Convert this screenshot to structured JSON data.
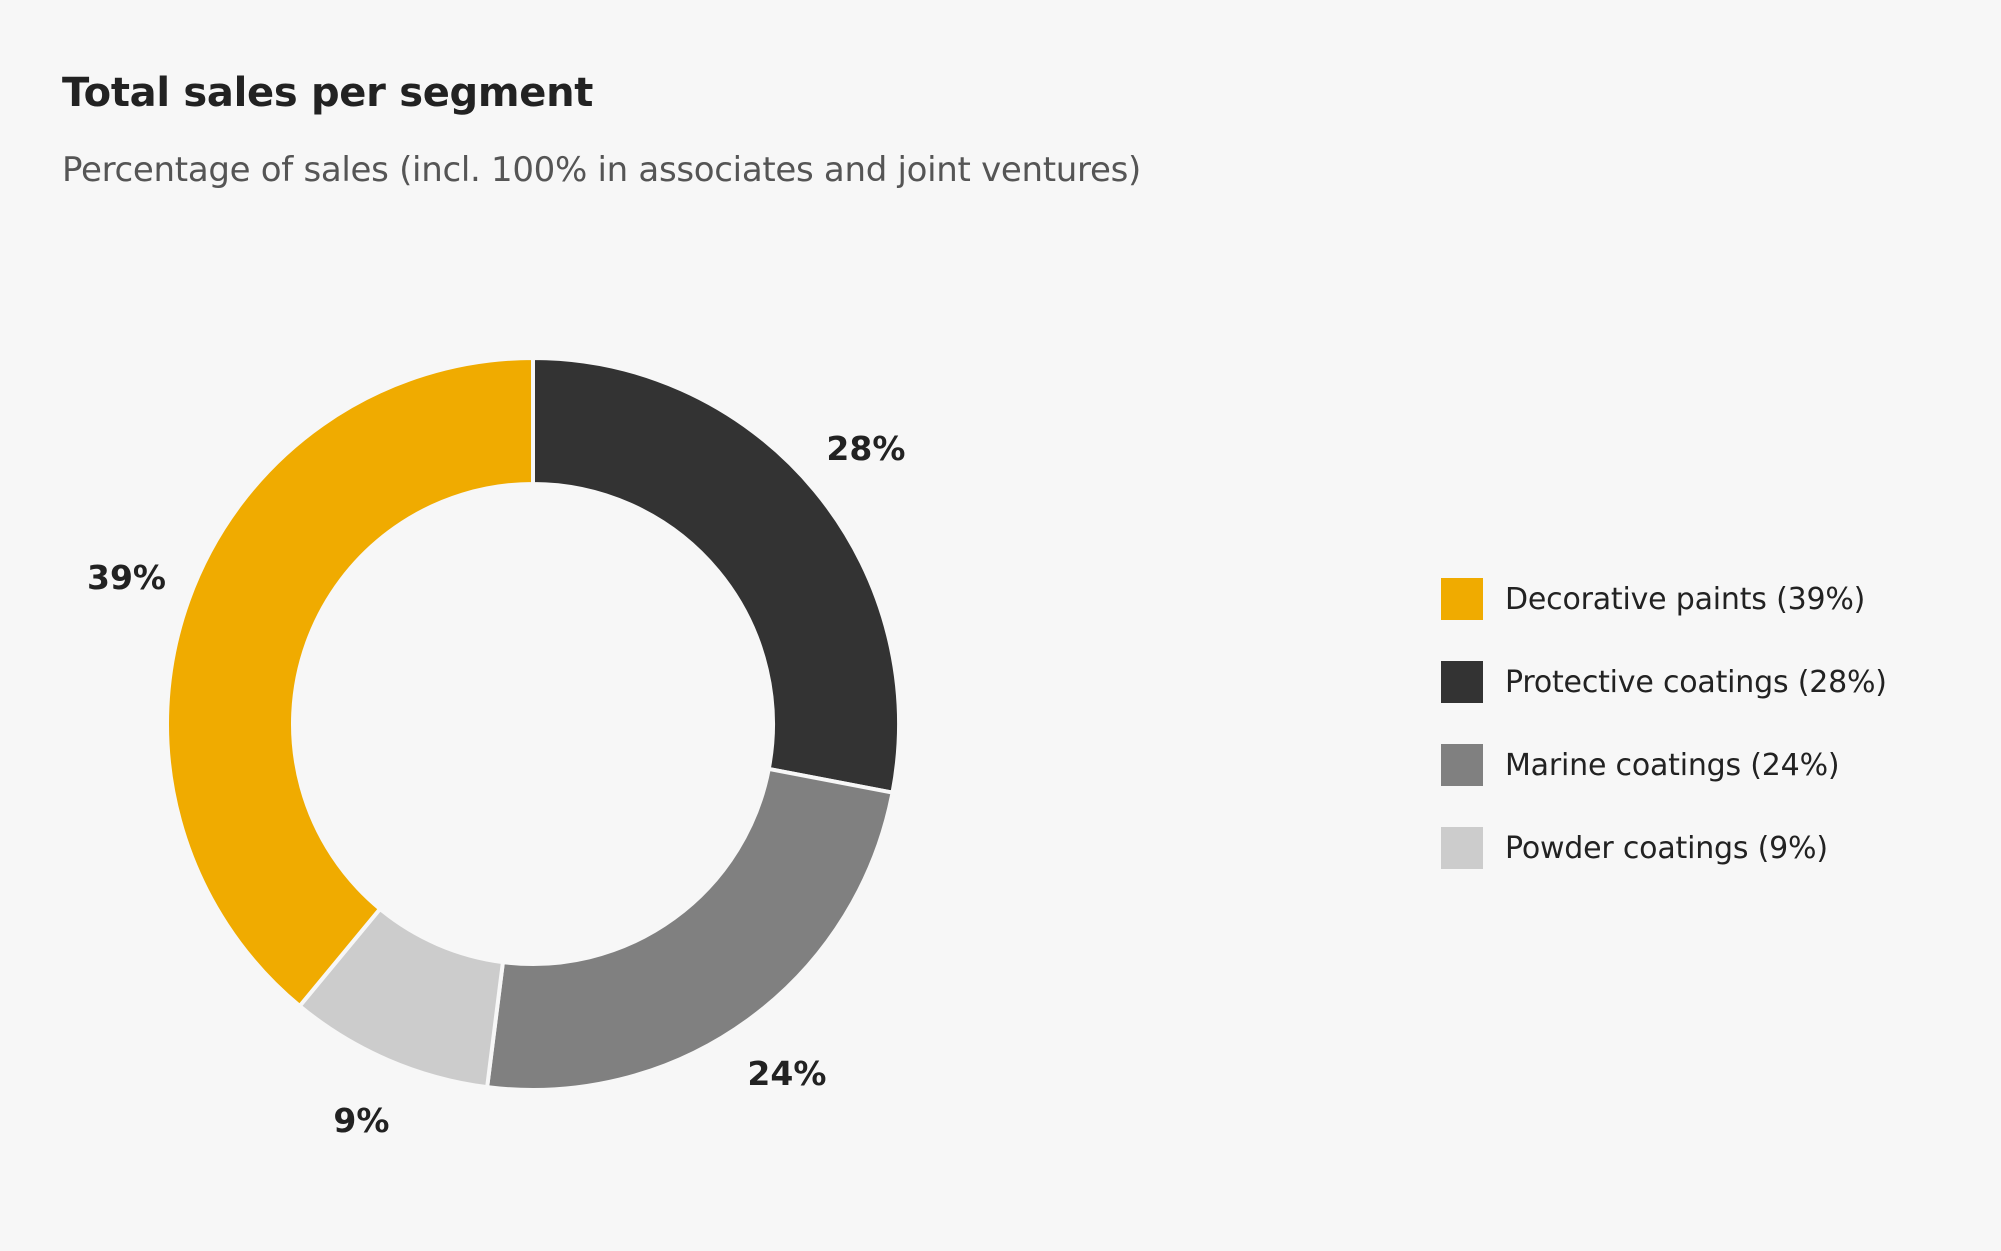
{
  "chart_data": {
    "type": "pie",
    "subtype": "donut",
    "title": "Total sales per segment",
    "subtitle": "Percentage of sales (incl. 100% in associates and joint ventures)",
    "categories": [
      "Protective coatings",
      "Marine coatings",
      "Powder coatings",
      "Decorative paints"
    ],
    "values": [
      28,
      24,
      9,
      39
    ],
    "data_labels": [
      "28%",
      "24%",
      "9%",
      "39%"
    ],
    "colors": [
      "#333333",
      "#808080",
      "#cccccc",
      "#f0ab00"
    ],
    "legend_position": "right",
    "legend": [
      {
        "label": "Decorative paints (39%)",
        "color": "#f0ab00"
      },
      {
        "label": "Protective coatings (28%)",
        "color": "#333333"
      },
      {
        "label": "Marine coatings (24%)",
        "color": "#808080"
      },
      {
        "label": "Powder coatings (9%)",
        "color": "#cccccc"
      }
    ]
  }
}
